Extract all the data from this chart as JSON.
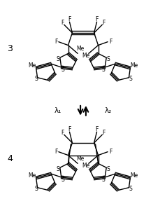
{
  "bg_color": "#ffffff",
  "line_color": "#000000",
  "lw": 1.0,
  "label_3": "3",
  "label_4": "4",
  "lambda1": "λ₁",
  "lambda2": "λ₂",
  "figsize": [
    2.39,
    2.94
  ],
  "dpi": 100
}
